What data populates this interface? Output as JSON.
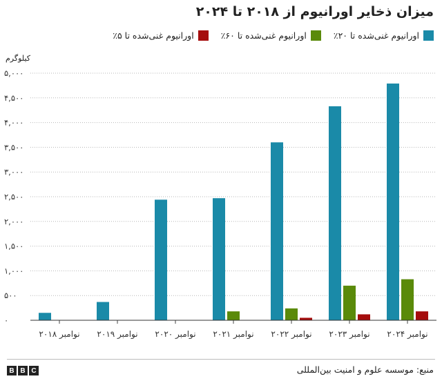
{
  "title": "میزان ذخایر اورانیوم از ۲۰۱۸ تا ۲۰۲۴",
  "source": "منبع: موسسه علوم و امنیت بین‌المللی",
  "logo": [
    "B",
    "B",
    "C"
  ],
  "colors": {
    "enr20": "#1a8aa8",
    "enr60": "#5a8a0a",
    "enr5": "#a50d0d"
  },
  "chart_data": {
    "type": "bar",
    "ylabel": "کیلوگرم",
    "ylim": [
      0,
      5000
    ],
    "yticks": [
      0,
      500,
      1000,
      1500,
      2000,
      2500,
      3000,
      3500,
      4000,
      4500,
      5000
    ],
    "ytick_labels": [
      "۰",
      "۵۰۰",
      "۱,۰۰۰",
      "۱,۵۰۰",
      "۲,۰۰۰",
      "۲,۵۰۰",
      "۳,۰۰۰",
      "۳,۵۰۰",
      "۴,۰۰۰",
      "۴,۵۰۰",
      "۵,۰۰۰"
    ],
    "categories": [
      "نوامبر ۲۰۱۸",
      "نوامبر ۲۰۱۹",
      "نوامبر ۲۰۲۰",
      "نوامبر ۲۰۲۱",
      "نوامبر ۲۰۲۲",
      "نوامبر ۲۰۲۳",
      "نوامبر ۲۰۲۴"
    ],
    "series": [
      {
        "name": "اورانیوم غنی‌شده تا ۲۰٪",
        "color": "#1a8aa8",
        "values": [
          150,
          370,
          2440,
          2470,
          3600,
          4330,
          4790
        ]
      },
      {
        "name": "اورانیوم غنی‌شده تا ۶۰٪",
        "color": "#5a8a0a",
        "values": [
          0,
          0,
          0,
          180,
          240,
          700,
          830
        ]
      },
      {
        "name": "اورانیوم غنی‌شده تا ۵٪",
        "color": "#a50d0d",
        "values": [
          0,
          0,
          0,
          0,
          50,
          120,
          180
        ]
      }
    ],
    "grid": "horizontal-dotted",
    "legend": "top-right"
  }
}
